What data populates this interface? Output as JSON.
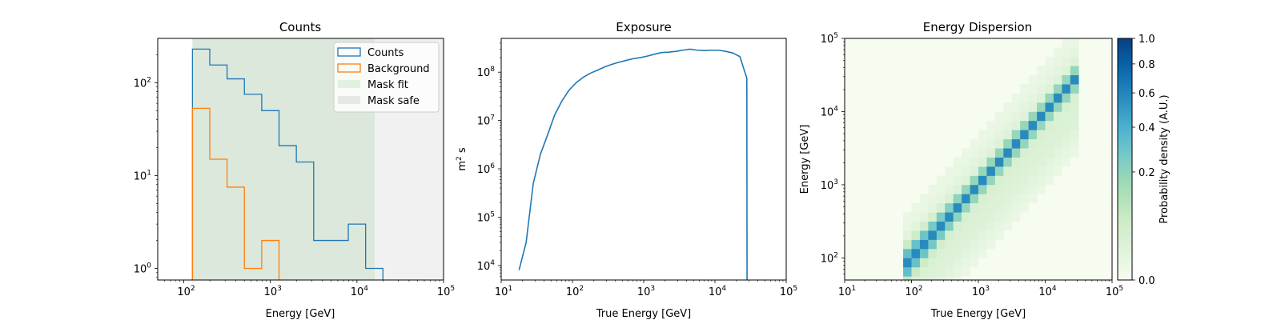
{
  "chart_data": [
    {
      "type": "step",
      "title": "Counts",
      "xlabel": "Energy [GeV]",
      "ylabel": "",
      "xscale": "log",
      "yscale": "log",
      "xlim": [
        50,
        100000
      ],
      "ylim": [
        0.75,
        300
      ],
      "x_ticks": [
        {
          "v": 100,
          "base": "10",
          "exp": "2"
        },
        {
          "v": 1000,
          "base": "10",
          "exp": "3"
        },
        {
          "v": 10000,
          "base": "10",
          "exp": "4"
        },
        {
          "v": 100000,
          "base": "10",
          "exp": "5"
        }
      ],
      "y_ticks": [
        {
          "v": 1,
          "base": "10",
          "exp": "0"
        },
        {
          "v": 10,
          "base": "10",
          "exp": "1"
        },
        {
          "v": 100,
          "base": "10",
          "exp": "2"
        }
      ],
      "bin_edges": [
        125.9,
        199.5,
        316.2,
        501.2,
        794.3,
        1258.9,
        1995.3,
        3162.3,
        5011.9,
        7943.3,
        12589.3,
        19952.6
      ],
      "series": [
        {
          "name": "Counts",
          "color": "#1f77b4",
          "values": [
            230,
            155,
            110,
            75,
            50,
            21,
            14,
            2,
            2,
            3,
            1
          ]
        },
        {
          "name": "Background",
          "color": "#ff7f0e",
          "values": [
            53,
            15,
            7.5,
            1,
            2
          ]
        }
      ],
      "mask_fit": {
        "name": "Mask fit",
        "range": [
          125.9,
          16000
        ],
        "color": "#2ca02c"
      },
      "mask_safe": {
        "name": "Mask safe",
        "range": [
          125.9,
          100000
        ],
        "color": "#bdbdbd"
      },
      "legend": [
        "Counts",
        "Background",
        "Mask fit",
        "Mask safe"
      ],
      "legend_position": "top-right"
    },
    {
      "type": "line",
      "title": "Exposure",
      "xlabel": "True Energy [GeV]",
      "ylabel_base": "m",
      "ylabel_sup": "2",
      "ylabel_rest": " s",
      "xscale": "log",
      "yscale": "log",
      "xlim": [
        10,
        100000
      ],
      "ylim": [
        5000,
        500000000
      ],
      "color": "#1f77b4",
      "x_ticks": [
        {
          "v": 10,
          "base": "10",
          "exp": "1"
        },
        {
          "v": 100,
          "base": "10",
          "exp": "2"
        },
        {
          "v": 1000,
          "base": "10",
          "exp": "3"
        },
        {
          "v": 10000,
          "base": "10",
          "exp": "4"
        },
        {
          "v": 100000,
          "base": "10",
          "exp": "5"
        }
      ],
      "y_ticks": [
        {
          "v": 10000,
          "base": "10",
          "exp": "4"
        },
        {
          "v": 100000,
          "base": "10",
          "exp": "5"
        },
        {
          "v": 1000000,
          "base": "10",
          "exp": "6"
        },
        {
          "v": 10000000,
          "base": "10",
          "exp": "7"
        },
        {
          "v": 100000000,
          "base": "10",
          "exp": "8"
        }
      ],
      "x": [
        17.8,
        22.4,
        28.2,
        35.5,
        44.7,
        56.2,
        70.8,
        89.1,
        112,
        141,
        178,
        224,
        282,
        355,
        447,
        562,
        708,
        891,
        1122,
        1413,
        1778,
        2239,
        2818,
        3548,
        4467,
        5623,
        7079,
        8913,
        11220,
        14125,
        17783,
        22387,
        28000,
        28200
      ],
      "y": [
        8000,
        30000,
        500000,
        2000000,
        5000000,
        13000000,
        25000000,
        42000000,
        60000000,
        78000000,
        95000000,
        110000000,
        128000000,
        145000000,
        160000000,
        175000000,
        190000000,
        200000000,
        215000000,
        235000000,
        255000000,
        260000000,
        270000000,
        285000000,
        300000000,
        285000000,
        280000000,
        285000000,
        285000000,
        270000000,
        250000000,
        210000000,
        75000000,
        5000
      ]
    },
    {
      "type": "heatmap",
      "title": "Energy Dispersion",
      "xlabel": "True Energy [GeV]",
      "ylabel": "Energy [GeV]",
      "colorbar_label": "Probability density (A.U.)",
      "xscale": "log",
      "yscale": "log",
      "xlim": [
        10,
        100000
      ],
      "ylim": [
        50,
        100000
      ],
      "x_ticks": [
        {
          "v": 10,
          "base": "10",
          "exp": "1"
        },
        {
          "v": 100,
          "base": "10",
          "exp": "2"
        },
        {
          "v": 1000,
          "base": "10",
          "exp": "3"
        },
        {
          "v": 10000,
          "base": "10",
          "exp": "4"
        },
        {
          "v": 100000,
          "base": "10",
          "exp": "5"
        }
      ],
      "y_ticks": [
        {
          "v": 100,
          "base": "10",
          "exp": "2"
        },
        {
          "v": 1000,
          "base": "10",
          "exp": "3"
        },
        {
          "v": 10000,
          "base": "10",
          "exp": "4"
        },
        {
          "v": 100000,
          "base": "10",
          "exp": "5"
        }
      ],
      "colorbar_ticks": [
        "0.0",
        "0.2",
        "0.4",
        "0.6",
        "0.8",
        "1.0"
      ],
      "colorbar_tick_values": [
        0,
        0.2,
        0.4,
        0.6,
        0.8,
        1.0
      ],
      "colormap": [
        "#f7fcf0",
        "#e0f3db",
        "#ccebc5",
        "#a8ddb5",
        "#7bccc4",
        "#4eb3d3",
        "#2b8cbe",
        "#0868ac",
        "#084081"
      ],
      "colormap_gamma": 0.5,
      "true_energy_range": [
        75,
        30000
      ],
      "bins_per_decade": 8,
      "peak_value": 0.55
    }
  ]
}
